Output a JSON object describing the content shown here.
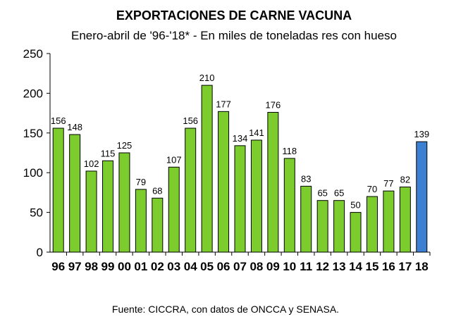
{
  "chart_data": {
    "type": "bar",
    "title": "EXPORTACIONES DE CARNE VACUNA",
    "subtitle": "Enero-abril de '96-'18* - En miles de toneladas res con hueso",
    "categories": [
      "96",
      "97",
      "98",
      "99",
      "00",
      "01",
      "02",
      "03",
      "04",
      "05",
      "06",
      "07",
      "08",
      "09",
      "10",
      "11",
      "12",
      "13",
      "14",
      "15",
      "16",
      "17",
      "18"
    ],
    "values": [
      156,
      148,
      102,
      115,
      125,
      79,
      68,
      107,
      156,
      210,
      177,
      134,
      141,
      176,
      118,
      83,
      65,
      65,
      50,
      70,
      77,
      82,
      139
    ],
    "highlight_index": 22,
    "bar_color": "#7ccc2e",
    "highlight_color": "#3d7fd1",
    "xlabel": "",
    "ylabel": "",
    "ylim": [
      0,
      250
    ],
    "yticks": [
      0,
      50,
      100,
      150,
      200,
      250
    ],
    "grid": false,
    "source": "Fuente: CICCRA, con datos de ONCCA y SENASA."
  }
}
